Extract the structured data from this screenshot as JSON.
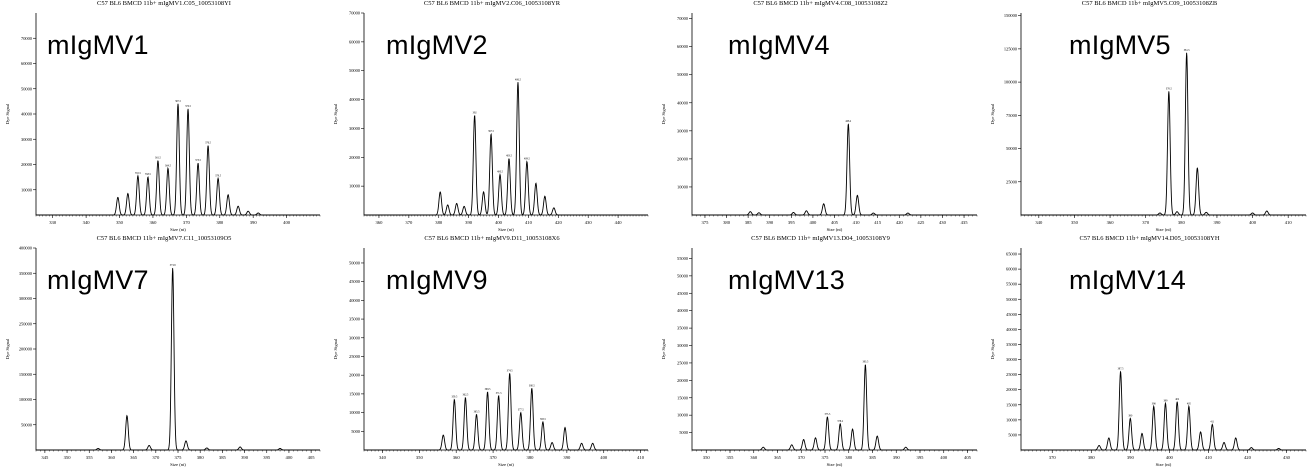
{
  "figure": {
    "colors": {
      "trace": "#000000",
      "axis": "#000000",
      "background": "#ffffff"
    }
  },
  "chart_data": [
    {
      "type": "line",
      "title": "C57 BL6 BMCD 11b+ mIgMV1.C05_10053108YI",
      "label": "mIgMV1",
      "xlabel": "Size (nt)",
      "ylabel": "Dye Signal",
      "xlim": [
        325,
        410
      ],
      "ylim": [
        0,
        80000
      ],
      "xticks": [
        330,
        340,
        350,
        360,
        370,
        380,
        390,
        400
      ],
      "yticks": [
        10000,
        20000,
        30000,
        40000,
        50000,
        60000,
        70000
      ],
      "ytick_labels": [
        "10000",
        "20000",
        "30000",
        "40000",
        "50000",
        "60000",
        "70000"
      ],
      "peaks": [
        {
          "x": 349.5,
          "y": 7000
        },
        {
          "x": 352.5,
          "y": 8500
        },
        {
          "x": 355.5,
          "y": 15500
        },
        {
          "x": 358.5,
          "y": 15000
        },
        {
          "x": 361.5,
          "y": 21500
        },
        {
          "x": 364.5,
          "y": 18500
        },
        {
          "x": 367.5,
          "y": 44000
        },
        {
          "x": 370.5,
          "y": 42000
        },
        {
          "x": 373.5,
          "y": 20500
        },
        {
          "x": 376.5,
          "y": 27500
        },
        {
          "x": 379.5,
          "y": 14500
        },
        {
          "x": 382.5,
          "y": 8000
        },
        {
          "x": 385.5,
          "y": 3500
        },
        {
          "x": 388.5,
          "y": 1500
        },
        {
          "x": 391.5,
          "y": 800
        }
      ],
      "grid": false
    },
    {
      "type": "line",
      "title": "C57 BL6 BMCD 11b+ mIgMV2.C06_10053108YR",
      "label": "mIgMV2",
      "xlabel": "Size (nt)",
      "ylabel": "Dye Signal",
      "xlim": [
        355,
        450
      ],
      "ylim": [
        0,
        70000
      ],
      "xticks": [
        360,
        370,
        380,
        390,
        400,
        410,
        420,
        430,
        440
      ],
      "yticks": [
        10000,
        20000,
        30000,
        40000,
        50000,
        60000,
        70000
      ],
      "ytick_labels": [
        "10000",
        "20000",
        "30000",
        "40000",
        "50000",
        "60000",
        "70000"
      ],
      "peaks": [
        {
          "x": 380.5,
          "y": 8000
        },
        {
          "x": 383,
          "y": 3500
        },
        {
          "x": 386,
          "y": 4000
        },
        {
          "x": 388.5,
          "y": 3000
        },
        {
          "x": 392,
          "y": 34500
        },
        {
          "x": 395,
          "y": 8000
        },
        {
          "x": 397.5,
          "y": 28000
        },
        {
          "x": 400.5,
          "y": 14000
        },
        {
          "x": 403.5,
          "y": 19500
        },
        {
          "x": 406.5,
          "y": 46000
        },
        {
          "x": 409.5,
          "y": 18500
        },
        {
          "x": 412.5,
          "y": 11000
        },
        {
          "x": 415.5,
          "y": 6500
        },
        {
          "x": 418.5,
          "y": 2500
        }
      ],
      "grid": false
    },
    {
      "type": "line",
      "title": "C57 BL6 BMCD 11b+ mIgMV4.C08_10053108Z2",
      "label": "mIgMV4",
      "xlabel": "Size (nt)",
      "ylabel": "Dye Signal",
      "xlim": [
        372,
        438
      ],
      "ylim": [
        0,
        72000
      ],
      "xticks": [
        375,
        380,
        385,
        390,
        395,
        400,
        405,
        410,
        415,
        420,
        425,
        430,
        435
      ],
      "yticks": [
        10000,
        20000,
        30000,
        40000,
        50000,
        60000,
        70000
      ],
      "ytick_labels": [
        "10000",
        "20000",
        "30000",
        "40000",
        "50000",
        "60000",
        "70000"
      ],
      "peaks": [
        {
          "x": 385.5,
          "y": 1200
        },
        {
          "x": 387.5,
          "y": 800
        },
        {
          "x": 395.5,
          "y": 900
        },
        {
          "x": 398.5,
          "y": 1500
        },
        {
          "x": 402.5,
          "y": 4000
        },
        {
          "x": 408.2,
          "y": 32500
        },
        {
          "x": 410.3,
          "y": 7000
        },
        {
          "x": 414,
          "y": 700
        },
        {
          "x": 422,
          "y": 700
        }
      ],
      "grid": false
    },
    {
      "type": "line",
      "title": "C57 BL6 BMCD 11b+ mIgMV5.C09_10053108ZB",
      "label": "mIgMV5",
      "xlabel": "Size (nt)",
      "ylabel": "Dye Signal",
      "xlim": [
        335,
        415
      ],
      "ylim": [
        0,
        152000
      ],
      "xticks": [
        340,
        350,
        360,
        370,
        380,
        390,
        400,
        410
      ],
      "yticks": [
        25000,
        50000,
        75000,
        100000,
        125000,
        150000
      ],
      "ytick_labels": [
        "25000",
        "50000",
        "75000",
        "100000",
        "125000",
        "150000"
      ],
      "peaks": [
        {
          "x": 374,
          "y": 1500
        },
        {
          "x": 376.5,
          "y": 93000
        },
        {
          "x": 378.8,
          "y": 2500
        },
        {
          "x": 381.5,
          "y": 122000
        },
        {
          "x": 384.5,
          "y": 35500
        },
        {
          "x": 387,
          "y": 2000
        },
        {
          "x": 400,
          "y": 1500
        },
        {
          "x": 404,
          "y": 3000
        }
      ],
      "grid": false
    },
    {
      "type": "line",
      "title": "C57 BL6 BMCD 11b+ mIgMV7.C11_10053109O5",
      "label": "mIgMV7",
      "xlabel": "Size (nt)",
      "ylabel": "Dye Signal",
      "xlim": [
        343,
        407
      ],
      "ylim": [
        0,
        400000
      ],
      "xticks": [
        345,
        350,
        355,
        360,
        365,
        370,
        375,
        380,
        385,
        390,
        395,
        400,
        405
      ],
      "yticks": [
        50000,
        100000,
        150000,
        200000,
        250000,
        300000,
        350000,
        400000
      ],
      "ytick_labels": [
        "50000",
        "100000",
        "150000",
        "200000",
        "250000",
        "300000",
        "350000",
        "400000"
      ],
      "peaks": [
        {
          "x": 357,
          "y": 3000
        },
        {
          "x": 363.5,
          "y": 68000
        },
        {
          "x": 368.5,
          "y": 9000
        },
        {
          "x": 373.8,
          "y": 360000
        },
        {
          "x": 376.8,
          "y": 18000
        },
        {
          "x": 381.5,
          "y": 4000
        },
        {
          "x": 389,
          "y": 6000
        },
        {
          "x": 398,
          "y": 3000
        }
      ],
      "grid": false
    },
    {
      "type": "line",
      "title": "C57 BL6 BMCD 11b+ mIgMV9.D11_10053108X6",
      "label": "mIgMV9",
      "xlabel": "Size (nt)",
      "ylabel": "Dye Signal",
      "xlim": [
        335,
        412
      ],
      "ylim": [
        0,
        54000
      ],
      "xticks": [
        340,
        350,
        360,
        370,
        380,
        390,
        400,
        410
      ],
      "yticks": [
        5000,
        10000,
        15000,
        20000,
        25000,
        30000,
        35000,
        40000,
        45000,
        50000
      ],
      "ytick_labels": [
        "5000",
        "10000",
        "15000",
        "20000",
        "25000",
        "30000",
        "35000",
        "40000",
        "45000",
        "50000"
      ],
      "peaks": [
        {
          "x": 356.5,
          "y": 4000
        },
        {
          "x": 359.5,
          "y": 13500
        },
        {
          "x": 362.5,
          "y": 14000
        },
        {
          "x": 365.5,
          "y": 9500
        },
        {
          "x": 368.5,
          "y": 15500
        },
        {
          "x": 371.5,
          "y": 14500
        },
        {
          "x": 374.5,
          "y": 20500
        },
        {
          "x": 377.5,
          "y": 10000
        },
        {
          "x": 380.5,
          "y": 16500
        },
        {
          "x": 383.5,
          "y": 7500
        },
        {
          "x": 386,
          "y": 2000
        },
        {
          "x": 389.5,
          "y": 6000
        },
        {
          "x": 394,
          "y": 1800
        },
        {
          "x": 397,
          "y": 1800
        }
      ],
      "grid": false
    },
    {
      "type": "line",
      "title": "C57 BL6 BMCD 11b+ mIgMV13.D04_10053108Y9",
      "label": "mIgMV13",
      "xlabel": "Size (nt)",
      "ylabel": "Dye Signal",
      "xlim": [
        347,
        407
      ],
      "ylim": [
        0,
        58000
      ],
      "xticks": [
        350,
        355,
        360,
        365,
        370,
        375,
        380,
        385,
        390,
        395,
        400,
        405
      ],
      "yticks": [
        5000,
        10000,
        15000,
        20000,
        25000,
        30000,
        35000,
        40000,
        45000,
        50000,
        55000
      ],
      "ytick_labels": [
        "5000",
        "10000",
        "15000",
        "20000",
        "25000",
        "30000",
        "35000",
        "40000",
        "45000",
        "50000",
        "55000"
      ],
      "peaks": [
        {
          "x": 362,
          "y": 800
        },
        {
          "x": 368,
          "y": 1500
        },
        {
          "x": 370.5,
          "y": 3000
        },
        {
          "x": 373,
          "y": 3500
        },
        {
          "x": 375.5,
          "y": 9500
        },
        {
          "x": 378.2,
          "y": 7500
        },
        {
          "x": 380.8,
          "y": 6000
        },
        {
          "x": 383.5,
          "y": 24500
        },
        {
          "x": 386,
          "y": 4000
        },
        {
          "x": 392,
          "y": 800
        }
      ],
      "grid": false
    },
    {
      "type": "line",
      "title": "C57 BL6 BMCD 11b+ mIgMV14.D05_10053108YH",
      "label": "mIgMV14",
      "xlabel": "Size (nt)",
      "ylabel": "Dye Signal",
      "xlim": [
        362,
        435
      ],
      "ylim": [
        0,
        67000
      ],
      "xticks": [
        370,
        380,
        390,
        400,
        410,
        420,
        430
      ],
      "yticks": [
        5000,
        10000,
        15000,
        20000,
        25000,
        30000,
        35000,
        40000,
        45000,
        50000,
        55000,
        60000,
        65000
      ],
      "ytick_labels": [
        "5000",
        "10000",
        "15000",
        "20000",
        "25000",
        "30000",
        "35000",
        "40000",
        "45000",
        "50000",
        "55000",
        "60000",
        "65000"
      ],
      "peaks": [
        {
          "x": 382,
          "y": 1500
        },
        {
          "x": 384.5,
          "y": 4000
        },
        {
          "x": 387.5,
          "y": 26000
        },
        {
          "x": 390,
          "y": 10500
        },
        {
          "x": 393,
          "y": 5500
        },
        {
          "x": 396,
          "y": 14500
        },
        {
          "x": 399,
          "y": 15500
        },
        {
          "x": 402,
          "y": 16000
        },
        {
          "x": 405,
          "y": 14500
        },
        {
          "x": 408,
          "y": 6000
        },
        {
          "x": 411,
          "y": 8500
        },
        {
          "x": 414,
          "y": 2500
        },
        {
          "x": 417,
          "y": 4000
        },
        {
          "x": 421,
          "y": 800
        },
        {
          "x": 428,
          "y": 500
        }
      ],
      "grid": false
    }
  ]
}
